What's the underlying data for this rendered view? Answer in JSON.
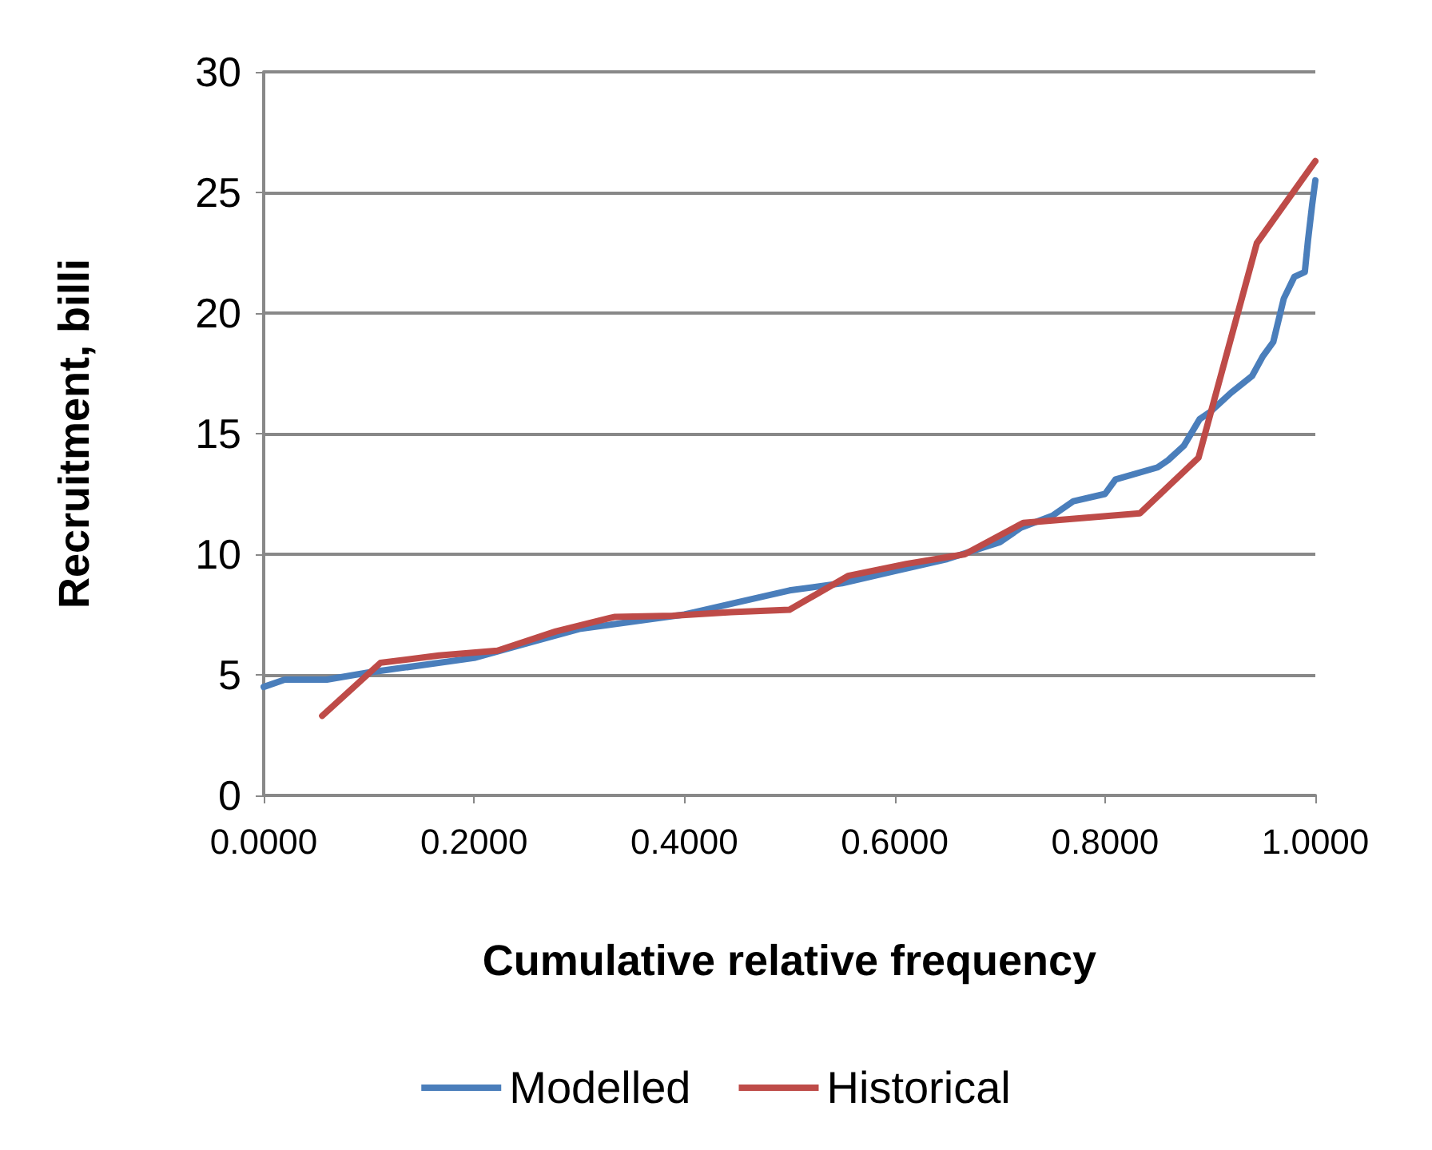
{
  "chart_data": {
    "type": "line",
    "xlabel": "Cumulative relative frequency",
    "ylabel": "Recruitment, billi",
    "xlim": [
      0,
      1
    ],
    "xticks": [
      {
        "value": 0,
        "label": "0.0000"
      },
      {
        "value": 0.2,
        "label": "0.2000"
      },
      {
        "value": 0.4,
        "label": "0.4000"
      },
      {
        "value": 0.6,
        "label": "0.6000"
      },
      {
        "value": 0.8,
        "label": "0.8000"
      },
      {
        "value": 1,
        "label": "1.0000"
      }
    ],
    "ylim": [
      0,
      30
    ],
    "yticks": [
      0,
      5,
      10,
      15,
      20,
      25,
      30
    ],
    "grid": "y",
    "legend": "bottom",
    "marker": "none",
    "line_style": "solid",
    "series": [
      {
        "name": "Modelled",
        "color": "#4a7ebb",
        "x": [
          0,
          0.02,
          0.06,
          0.1,
          0.15,
          0.2,
          0.25,
          0.3,
          0.35,
          0.4,
          0.45,
          0.5,
          0.55,
          0.6,
          0.65,
          0.7,
          0.72,
          0.75,
          0.77,
          0.8,
          0.81,
          0.85,
          0.86,
          0.875,
          0.89,
          0.9,
          0.92,
          0.94,
          0.95,
          0.96,
          0.97,
          0.98,
          0.99,
          0.993,
          0.997,
          1.0
        ],
        "values": [
          4.5,
          4.8,
          4.8,
          5.1,
          5.4,
          5.7,
          6.3,
          6.9,
          7.2,
          7.5,
          8.0,
          8.5,
          8.8,
          9.3,
          9.8,
          10.5,
          11.1,
          11.6,
          12.2,
          12.5,
          13.1,
          13.6,
          13.9,
          14.5,
          15.6,
          15.9,
          16.7,
          17.4,
          18.2,
          18.8,
          20.6,
          21.5,
          21.7,
          23.0,
          24.5,
          25.5
        ]
      },
      {
        "name": "Historical",
        "color": "#be4b48",
        "x": [
          0.0556,
          0.1111,
          0.1667,
          0.2222,
          0.2778,
          0.3333,
          0.3889,
          0.4444,
          0.5,
          0.5556,
          0.6111,
          0.6667,
          0.7222,
          0.7778,
          0.8333,
          0.8889,
          0.9444,
          1.0
        ],
        "values": [
          3.3,
          5.5,
          5.8,
          6.0,
          6.8,
          7.4,
          7.45,
          7.6,
          7.7,
          9.1,
          9.6,
          10.0,
          11.3,
          11.5,
          11.7,
          14.0,
          22.9,
          26.3
        ]
      }
    ]
  }
}
